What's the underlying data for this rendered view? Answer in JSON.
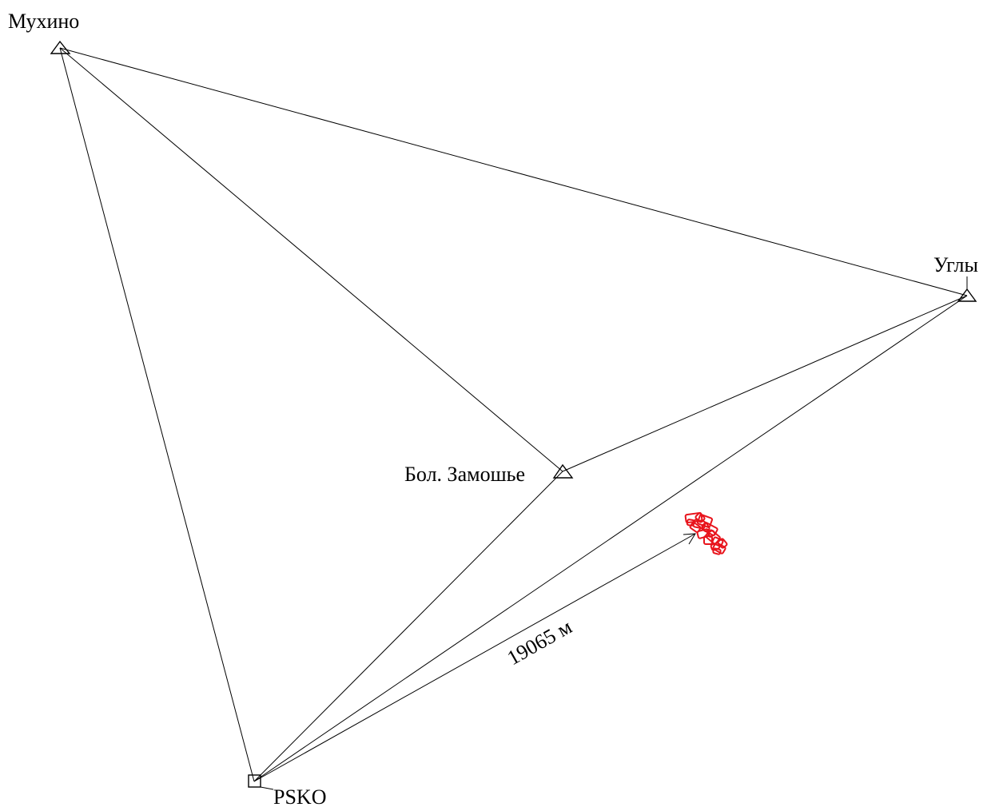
{
  "stations": [
    {
      "id": "mukhino",
      "name": "Мухино",
      "symbol": "triangle"
    },
    {
      "id": "ugly",
      "name": "Углы",
      "symbol": "triangle"
    },
    {
      "id": "zamoshye",
      "name": "Бол. Замошье",
      "symbol": "triangle"
    },
    {
      "id": "psko",
      "name": "PSKO",
      "symbol": "square"
    }
  ],
  "baselines": [
    {
      "from": "mukhino",
      "to": "ugly"
    },
    {
      "from": "mukhino",
      "to": "zamoshye"
    },
    {
      "from": "mukhino",
      "to": "psko"
    },
    {
      "from": "zamoshye",
      "to": "ugly"
    },
    {
      "from": "zamoshye",
      "to": "psko"
    },
    {
      "from": "ugly",
      "to": "psko"
    }
  ],
  "distance_arrow": {
    "from": "psko",
    "to": "survey_area",
    "label": "19065 м"
  },
  "colors": {
    "lines": "#000000",
    "survey_area": "#e8141c"
  }
}
